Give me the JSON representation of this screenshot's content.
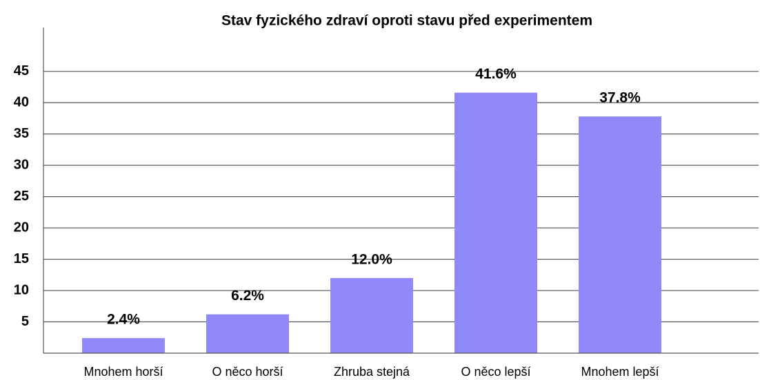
{
  "chart_data": {
    "type": "bar",
    "title": "Stav fyzického zdraví oproti stavu před experimentem",
    "categories": [
      "Mnohem horší",
      "O něco horší",
      "Zhruba stejná",
      "O něco lepší",
      "Mnohem lepší"
    ],
    "values": [
      2.4,
      6.2,
      12.0,
      41.6,
      37.8
    ],
    "value_labels": [
      "2.4%",
      "6.2%",
      "12.0%",
      "41.6%",
      "37.8%"
    ],
    "color": "#9189fb",
    "ylim": [
      0,
      52
    ],
    "yticks": [
      5,
      10,
      15,
      20,
      25,
      30,
      35,
      40,
      45
    ],
    "grid": true
  }
}
